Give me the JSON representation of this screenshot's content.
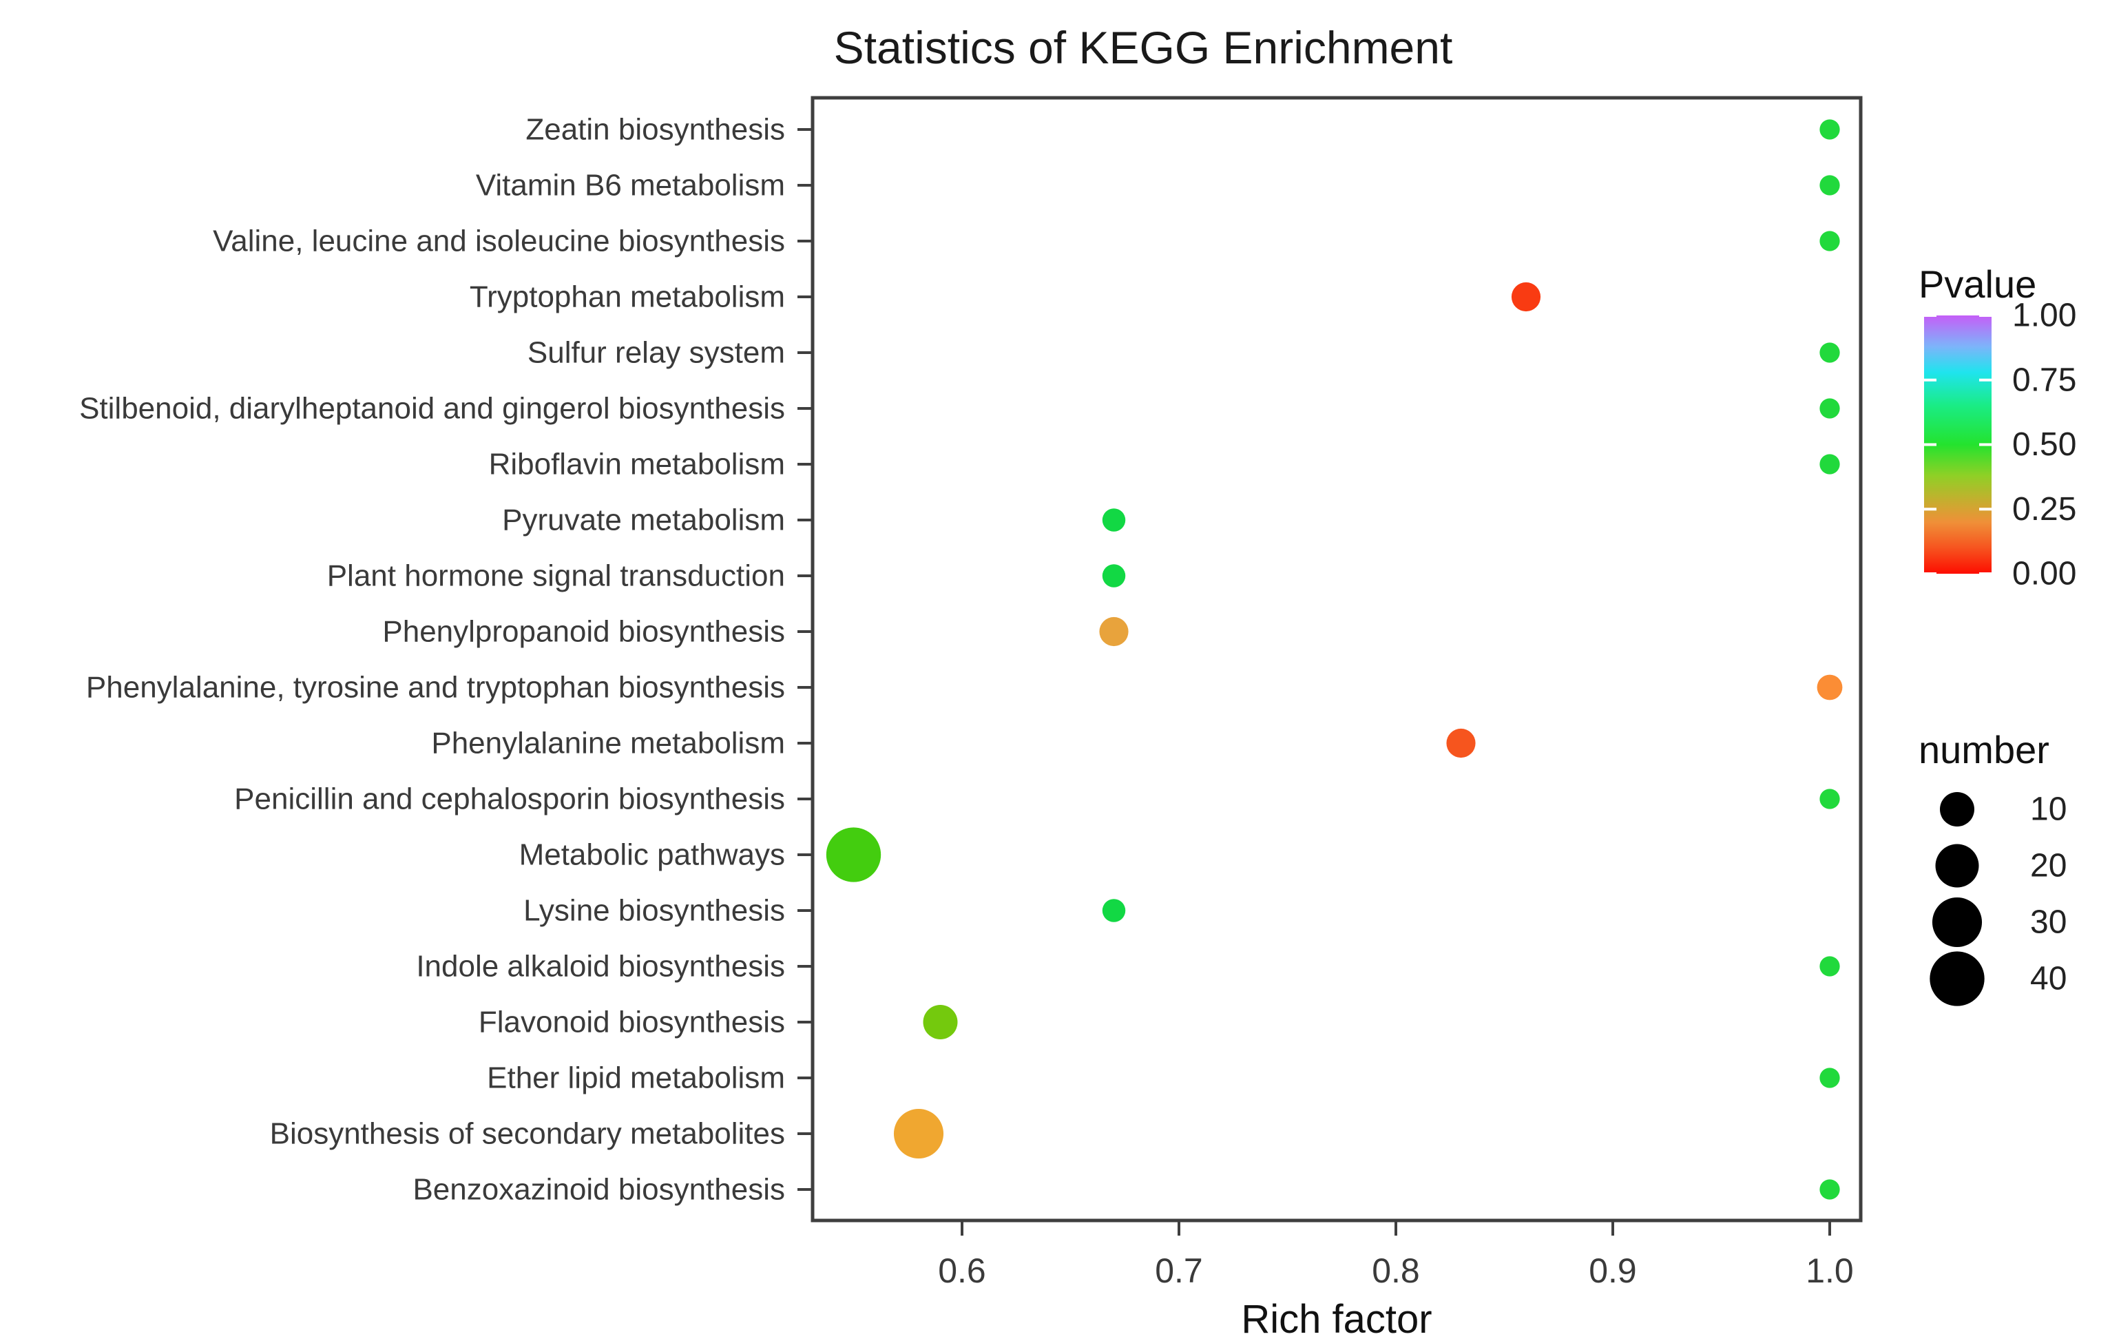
{
  "title": "Statistics of KEGG Enrichment",
  "chart_data": {
    "type": "scatter",
    "title": "Statistics of KEGG Enrichment",
    "xlabel": "Rich factor",
    "ylabel": "",
    "x_ticks": [
      "0.6",
      "0.7",
      "0.8",
      "0.9",
      "1.0"
    ],
    "x_tick_values": [
      0.6,
      0.7,
      0.8,
      0.9,
      1.0
    ],
    "xlim": [
      0.53,
      1.01
    ],
    "grid": false,
    "legend_pvalue": {
      "title": "Pvalue",
      "labels": [
        "1.00",
        "0.75",
        "0.50",
        "0.25",
        "0.00"
      ],
      "label_values": [
        1.0,
        0.75,
        0.5,
        0.25,
        0.0
      ],
      "gradient": [
        {
          "offset": 0.0,
          "color": "#c55ef7"
        },
        {
          "offset": 0.12,
          "color": "#7db4fa"
        },
        {
          "offset": 0.22,
          "color": "#1fe4ee"
        },
        {
          "offset": 0.35,
          "color": "#1aec84"
        },
        {
          "offset": 0.5,
          "color": "#24e32e"
        },
        {
          "offset": 0.62,
          "color": "#8fd026"
        },
        {
          "offset": 0.72,
          "color": "#c7ad2f"
        },
        {
          "offset": 0.8,
          "color": "#ef9038"
        },
        {
          "offset": 0.9,
          "color": "#f6541f"
        },
        {
          "offset": 1.0,
          "color": "#fd0d00"
        }
      ]
    },
    "legend_number": {
      "title": "number",
      "entries": [
        {
          "label": "10",
          "size": 10
        },
        {
          "label": "20",
          "size": 20
        },
        {
          "label": "30",
          "size": 30
        },
        {
          "label": "40",
          "size": 40
        }
      ]
    },
    "points": [
      {
        "category": "Zeatin biosynthesis",
        "rich_factor": 1.0,
        "number": 2,
        "pvalue": 0.5,
        "color": "#21d93c"
      },
      {
        "category": "Vitamin B6 metabolism",
        "rich_factor": 1.0,
        "number": 2,
        "pvalue": 0.5,
        "color": "#21d93c"
      },
      {
        "category": "Valine, leucine and isoleucine biosynthesis",
        "rich_factor": 1.0,
        "number": 2,
        "pvalue": 0.5,
        "color": "#21d93c"
      },
      {
        "category": "Tryptophan metabolism",
        "rich_factor": 0.86,
        "number": 6,
        "pvalue": 0.05,
        "color": "#f93b12"
      },
      {
        "category": "Sulfur relay system",
        "rich_factor": 1.0,
        "number": 2,
        "pvalue": 0.5,
        "color": "#21d93c"
      },
      {
        "category": "Stilbenoid, diarylheptanoid and gingerol biosynthesis",
        "rich_factor": 1.0,
        "number": 2,
        "pvalue": 0.5,
        "color": "#21d93c"
      },
      {
        "category": "Riboflavin metabolism",
        "rich_factor": 1.0,
        "number": 2,
        "pvalue": 0.5,
        "color": "#21d93c"
      },
      {
        "category": "Pyruvate metabolism",
        "rich_factor": 0.67,
        "number": 3,
        "pvalue": 0.52,
        "color": "#12d844"
      },
      {
        "category": "Plant hormone signal transduction",
        "rich_factor": 0.67,
        "number": 3,
        "pvalue": 0.52,
        "color": "#12d844"
      },
      {
        "category": "Phenylpropanoid biosynthesis",
        "rich_factor": 0.67,
        "number": 6,
        "pvalue": 0.3,
        "color": "#e8a33c"
      },
      {
        "category": "Phenylalanine, tyrosine and tryptophan biosynthesis",
        "rich_factor": 1.0,
        "number": 4,
        "pvalue": 0.22,
        "color": "#fb8d35"
      },
      {
        "category": "Phenylalanine metabolism",
        "rich_factor": 0.83,
        "number": 6,
        "pvalue": 0.12,
        "color": "#f6551e"
      },
      {
        "category": "Penicillin and cephalosporin biosynthesis",
        "rich_factor": 1.0,
        "number": 2,
        "pvalue": 0.5,
        "color": "#21d93c"
      },
      {
        "category": "Metabolic pathways",
        "rich_factor": 0.55,
        "number": 40,
        "pvalue": 0.45,
        "color": "#43cd0f"
      },
      {
        "category": "Lysine biosynthesis",
        "rich_factor": 0.67,
        "number": 3,
        "pvalue": 0.52,
        "color": "#12d844"
      },
      {
        "category": "Indole alkaloid biosynthesis",
        "rich_factor": 1.0,
        "number": 2,
        "pvalue": 0.5,
        "color": "#21d93c"
      },
      {
        "category": "Flavonoid biosynthesis",
        "rich_factor": 0.59,
        "number": 10,
        "pvalue": 0.4,
        "color": "#74c90d"
      },
      {
        "category": "Ether lipid metabolism",
        "rich_factor": 1.0,
        "number": 2,
        "pvalue": 0.5,
        "color": "#21d93c"
      },
      {
        "category": "Biosynthesis of secondary metabolites",
        "rich_factor": 0.58,
        "number": 30,
        "pvalue": 0.3,
        "color": "#f0a730"
      },
      {
        "category": "Benzoxazinoid biosynthesis",
        "rich_factor": 1.0,
        "number": 2,
        "pvalue": 0.5,
        "color": "#21d93c"
      }
    ]
  }
}
